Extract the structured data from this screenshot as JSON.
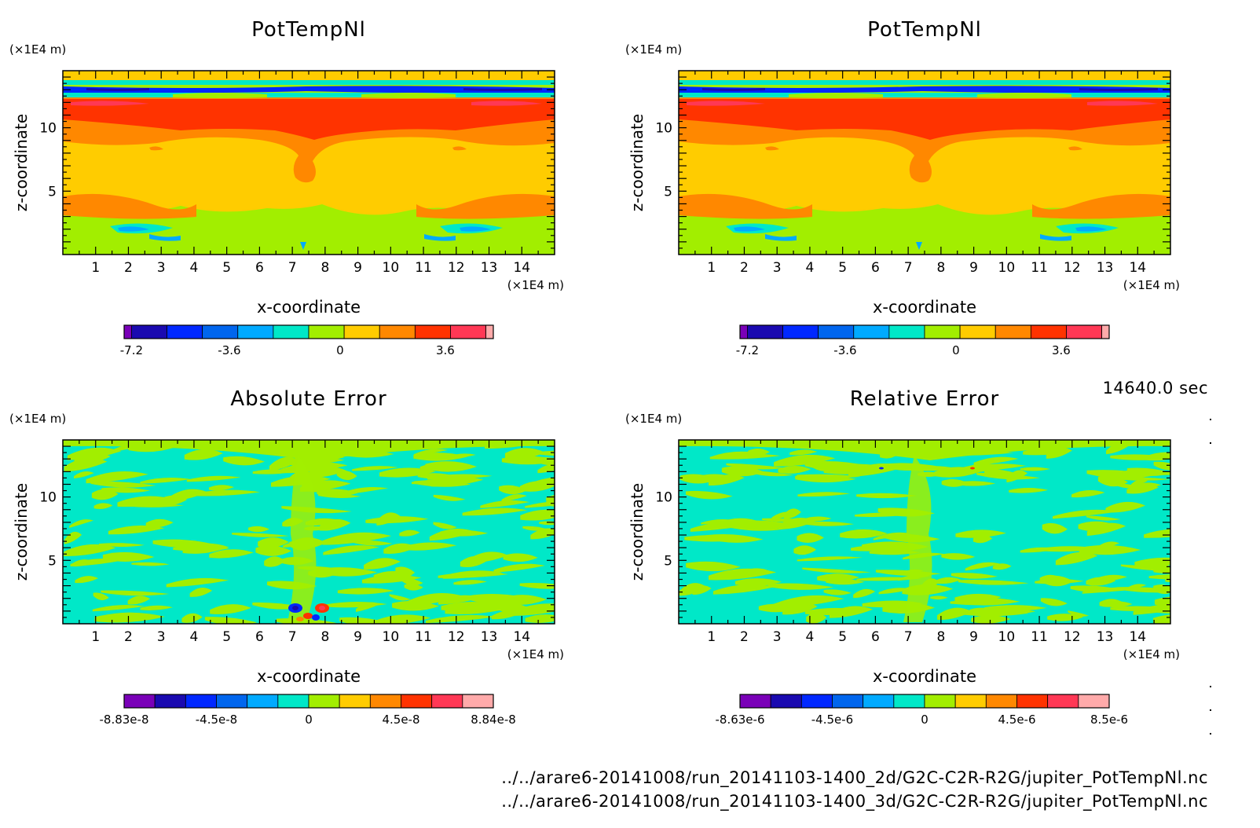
{
  "time_label": "14640.0 sec",
  "footer": {
    "path_2d": "../../arare6-20141008/run_20141103-1400_2d/G2C-C2R-R2G/jupiter_PotTempNl.nc",
    "path_3d": "../../arare6-20141008/run_20141103-1400_3d/G2C-C2R-R2G/jupiter_PotTempNl.nc"
  },
  "chart_data": [
    {
      "type": "heatmap",
      "title": "PotTempNl",
      "xlabel": "x-coordinate",
      "ylabel": "z-coordinate",
      "x_unit": "(×1E4 m)",
      "z_unit": "(×1E4 m)",
      "xlim": [
        0,
        15
      ],
      "zlim": [
        0,
        14.5
      ],
      "x_ticks": [
        "1",
        "2",
        "3",
        "4",
        "5",
        "6",
        "7",
        "8",
        "9",
        "10",
        "11",
        "12",
        "13",
        "14"
      ],
      "z_ticks": [
        "5",
        "10"
      ],
      "colorbar": {
        "colors": [
          "#7a00b8",
          "#1a0ab0",
          "#0028ff",
          "#0066ee",
          "#00aaff",
          "#00e8c8",
          "#a2ee00",
          "#ffcc00",
          "#ff8800",
          "#ff3300",
          "#ff3855",
          "#ffaaaa"
        ],
        "tick_labels": [
          "-7.2",
          "-3.6",
          "0",
          "3.6"
        ]
      }
    },
    {
      "type": "heatmap",
      "title": "PotTempNl",
      "xlabel": "x-coordinate",
      "ylabel": "z-coordinate",
      "x_unit": "(×1E4 m)",
      "z_unit": "(×1E4 m)",
      "xlim": [
        0,
        15
      ],
      "zlim": [
        0,
        14.5
      ],
      "x_ticks": [
        "1",
        "2",
        "3",
        "4",
        "5",
        "6",
        "7",
        "8",
        "9",
        "10",
        "11",
        "12",
        "13",
        "14"
      ],
      "z_ticks": [
        "5",
        "10"
      ],
      "colorbar": {
        "colors": [
          "#7a00b8",
          "#1a0ab0",
          "#0028ff",
          "#0066ee",
          "#00aaff",
          "#00e8c8",
          "#a2ee00",
          "#ffcc00",
          "#ff8800",
          "#ff3300",
          "#ff3855",
          "#ffaaaa"
        ],
        "tick_labels": [
          "-7.2",
          "-3.6",
          "0",
          "3.6"
        ]
      }
    },
    {
      "type": "heatmap",
      "title": "Absolute Error",
      "xlabel": "x-coordinate",
      "ylabel": "z-coordinate",
      "x_unit": "(×1E4 m)",
      "z_unit": "(×1E4 m)",
      "xlim": [
        0,
        15
      ],
      "zlim": [
        0,
        14.5
      ],
      "x_ticks": [
        "1",
        "2",
        "3",
        "4",
        "5",
        "6",
        "7",
        "8",
        "9",
        "10",
        "11",
        "12",
        "13",
        "14"
      ],
      "z_ticks": [
        "5",
        "10"
      ],
      "colorbar": {
        "colors": [
          "#7a00b8",
          "#1a0ab0",
          "#0028ff",
          "#0066ee",
          "#00aaff",
          "#00e8c8",
          "#a2ee00",
          "#ffcc00",
          "#ff8800",
          "#ff3300",
          "#ff3855",
          "#ffaaaa"
        ],
        "tick_labels": [
          "-8.83e-8",
          "-4.5e-8",
          "0",
          "4.5e-8",
          "8.84e-8"
        ]
      }
    },
    {
      "type": "heatmap",
      "title": "Relative Error",
      "xlabel": "x-coordinate",
      "ylabel": "z-coordinate",
      "x_unit": "(×1E4 m)",
      "z_unit": "(×1E4 m)",
      "xlim": [
        0,
        15
      ],
      "zlim": [
        0,
        14.5
      ],
      "x_ticks": [
        "1",
        "2",
        "3",
        "4",
        "5",
        "6",
        "7",
        "8",
        "9",
        "10",
        "11",
        "12",
        "13",
        "14"
      ],
      "z_ticks": [
        "5",
        "10"
      ],
      "colorbar": {
        "colors": [
          "#7a00b8",
          "#1a0ab0",
          "#0028ff",
          "#0066ee",
          "#00aaff",
          "#00e8c8",
          "#a2ee00",
          "#ffcc00",
          "#ff8800",
          "#ff3300",
          "#ff3855",
          "#ffaaaa"
        ],
        "tick_labels": [
          "-8.63e-6",
          "-4.5e-6",
          "0",
          "4.5e-6",
          "8.5e-6"
        ]
      }
    }
  ]
}
